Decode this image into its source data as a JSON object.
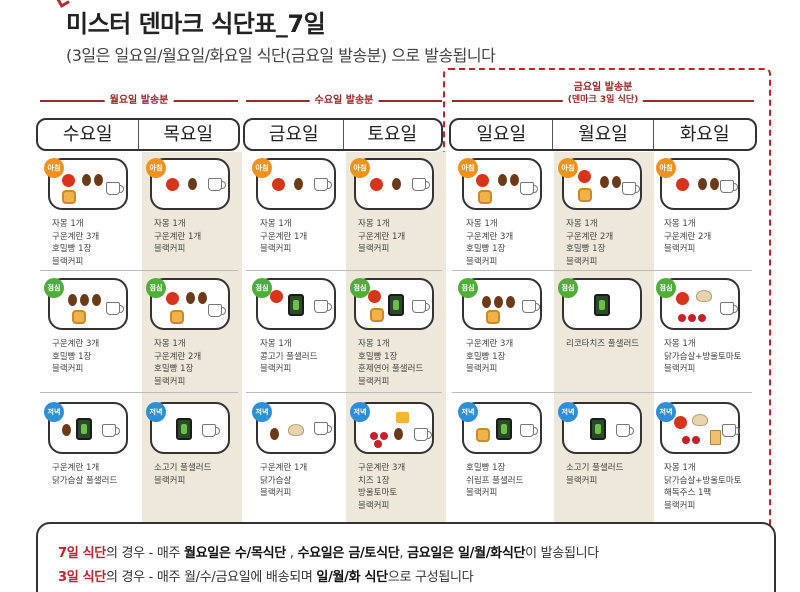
{
  "title": "미스터 덴마크 식단표_7일",
  "subtitle": "(3일은 일요일/월요일/화요일 식단(금요일 발송분) 으로 발송됩니다",
  "groups": [
    {
      "label": "월요일 발송분",
      "sub": ""
    },
    {
      "label": "수요일 발송분",
      "sub": ""
    },
    {
      "label": "금요일 발송분",
      "sub": "(덴마크 3일 식단)"
    }
  ],
  "days": [
    "수요일",
    "목요일",
    "금요일",
    "토요일",
    "일요일",
    "월요일",
    "화요일"
  ],
  "meals": [
    "아침",
    "점심",
    "저녁"
  ],
  "menu": [
    [
      [
        "자몽 1개",
        "구운계란 3개",
        "호밀빵 1장",
        "블랙커피"
      ],
      [
        "구운계란 3개",
        "호밀빵 1장",
        "블랙커피"
      ],
      [
        "구운계란 1개",
        "닭가슴살 풀샐러드"
      ]
    ],
    [
      [
        "자몽 1개",
        "구운계란 1개",
        "블랙커피"
      ],
      [
        "자몽 1개",
        "구운계란 2개",
        "호밀빵 1장",
        "블랙커피"
      ],
      [
        "소고기 풀샐러드",
        "블랙커피"
      ]
    ],
    [
      [
        "자몽 1개",
        "구운계란 1개",
        "블랙커피"
      ],
      [
        "자몽 1개",
        "콩고기 풀샐러드",
        "블랙커피"
      ],
      [
        "구운계란 1개",
        "닭가슴살",
        "블랙커피"
      ]
    ],
    [
      [
        "자몽 1개",
        "구운계란 1개",
        "블랙커피"
      ],
      [
        "자몽 1개",
        "호밀빵 1장",
        "훈제연어 풀샐러드",
        "블랙커피"
      ],
      [
        "구운계란 3개",
        "치즈 1장",
        "방울토마토",
        "블랙커피"
      ]
    ],
    [
      [
        "자몽 1개",
        "구운계란 3개",
        "호밀빵 1장",
        "블랙커피"
      ],
      [
        "구운계란 3개",
        "호밀빵 1장",
        "블랙커피"
      ],
      [
        "호밀빵 1장",
        "쉬림프 풀샐러드",
        "블랙커피"
      ]
    ],
    [
      [
        "자몽 1개",
        "구운계란 2개",
        "호밀빵 1장",
        "블랙커피"
      ],
      [
        "리코타치즈 풀샐러드"
      ],
      [
        "소고기 풀샐러드",
        "블랙커피"
      ]
    ],
    [
      [
        "자몽 1개",
        "구운계란 2개",
        "블랙커피"
      ],
      [
        "자몽 1개",
        "닭가슴살+방울토마토",
        "블랙커피"
      ],
      [
        "자몽 1개",
        "닭가슴살+방울토마토",
        "해독주스 1팩",
        "블랙커피"
      ]
    ]
  ],
  "note": {
    "line1": {
      "a": "7일 식단",
      "b": "의 경우 - 매주 ",
      "c": "월요일은 수/목식단",
      "d": " , ",
      "e": "수요일은 금/토식단",
      "f": ", ",
      "g": "금요일은 일/월/화식단",
      "h": "이 발송됩니다"
    },
    "line2": {
      "a": "3일 식단",
      "b": "의 경우 - 매주 월/수/금요일에 배송되며 ",
      "c": "일/월/화 식단",
      "d": "으로 구성됩니다"
    }
  },
  "colors": {
    "accent": "#c8202a",
    "group_label": "#9b2a2a",
    "shade": "#ede8da",
    "breakfast": "#f0921e",
    "lunch": "#4fae3a",
    "dinner": "#2e8ed6"
  },
  "icons": {
    "cup": "coffee-cup-icon",
    "tomato": "grapefruit-icon",
    "egg": "egg-icon",
    "bread": "rye-bread-icon",
    "salad": "salad-box-icon",
    "chicken": "chicken-icon",
    "cherry": "cherry-tomato-icon",
    "cheese": "cheese-icon",
    "pack": "juice-pack-icon"
  }
}
